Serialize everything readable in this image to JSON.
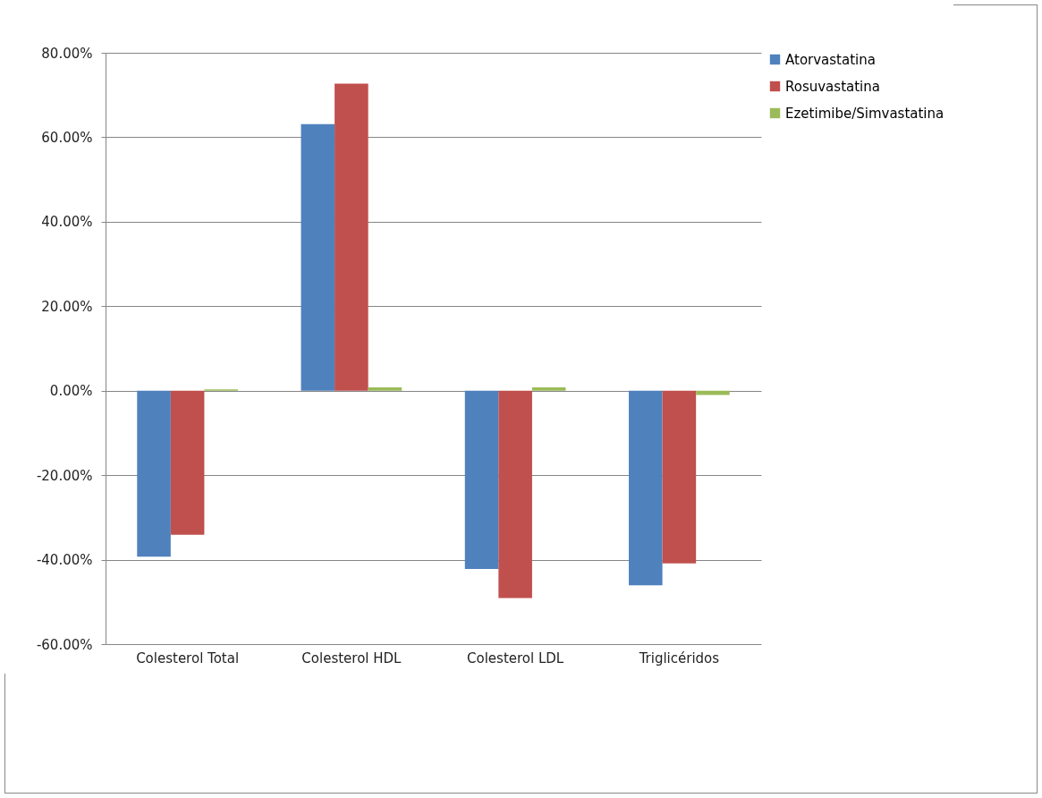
{
  "chart_data": {
    "type": "bar",
    "categories": [
      "Colesterol Total",
      "Colesterol HDL",
      "Colesterol LDL",
      "Triglicéridos"
    ],
    "series": [
      {
        "name": "Atorvastatina",
        "color": "#4f81bd",
        "values": [
          -39.3,
          63.1,
          -42.2,
          -46.1
        ]
      },
      {
        "name": "Rosuvastatina",
        "color": "#c0504d",
        "values": [
          -34.1,
          72.7,
          -49.1,
          -40.9
        ]
      },
      {
        "name": "Ezetimibe/Simvastatina",
        "color": "#9bbb59",
        "values": [
          0.3,
          0.8,
          0.8,
          -1.0
        ]
      }
    ],
    "ylim": [
      -60,
      80
    ],
    "yticks": [
      {
        "value": -60,
        "label": "-60.00%"
      },
      {
        "value": -40,
        "label": "-40.00%"
      },
      {
        "value": -20,
        "label": "-20.00%"
      },
      {
        "value": 0,
        "label": "0.00%"
      },
      {
        "value": 20,
        "label": "20.00%"
      },
      {
        "value": 40,
        "label": "40.00%"
      },
      {
        "value": 60,
        "label": "60.00%"
      },
      {
        "value": 80,
        "label": "80.00%"
      }
    ],
    "grid": "y",
    "legend": "right"
  }
}
